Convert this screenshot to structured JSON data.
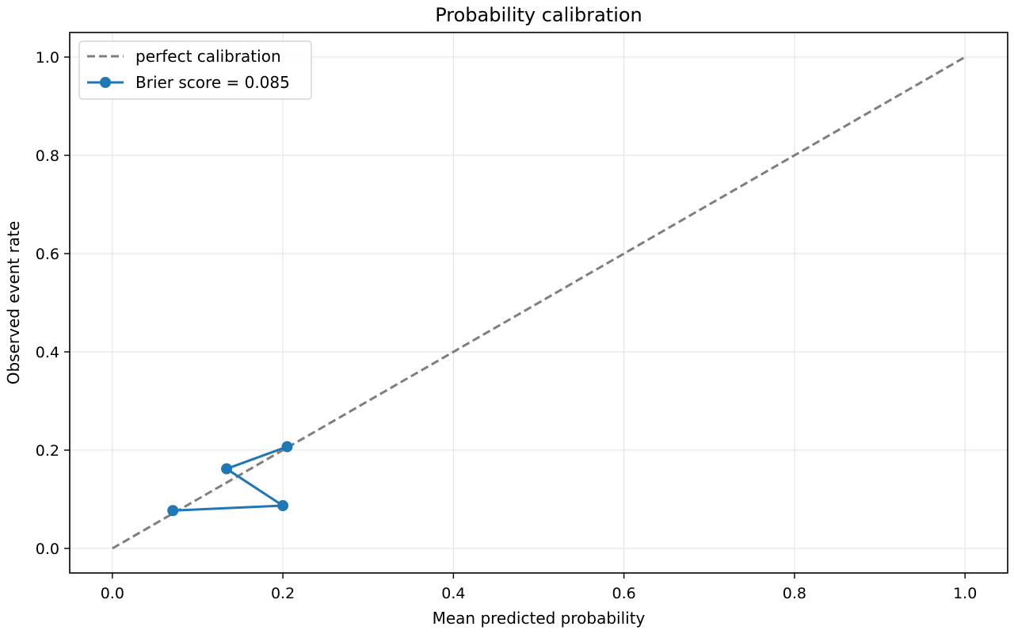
{
  "chart_data": {
    "type": "line",
    "title": "Probability calibration",
    "xlabel": "Mean predicted probability",
    "ylabel": "Observed event rate",
    "xlim": [
      -0.05,
      1.05
    ],
    "ylim": [
      -0.05,
      1.05
    ],
    "xticks": [
      0.0,
      0.2,
      0.4,
      0.6,
      0.8,
      1.0
    ],
    "yticks": [
      0.0,
      0.2,
      0.4,
      0.6,
      0.8,
      1.0
    ],
    "xtick_labels": [
      "0.0",
      "0.2",
      "0.4",
      "0.6",
      "0.8",
      "1.0"
    ],
    "ytick_labels": [
      "0.0",
      "0.2",
      "0.4",
      "0.6",
      "0.8",
      "1.0"
    ],
    "grid": true,
    "legend_position": "top-left",
    "series": [
      {
        "name": "perfect calibration",
        "style": "dashed",
        "color": "#7f7f7f",
        "x": [
          0.0,
          1.0
        ],
        "y": [
          0.0,
          1.0
        ]
      },
      {
        "name": "Brier score = 0.085",
        "style": "solid-markers",
        "color": "#1f77b4",
        "x": [
          0.071,
          0.2,
          0.134,
          0.205
        ],
        "y": [
          0.077,
          0.087,
          0.162,
          0.207
        ]
      }
    ]
  }
}
